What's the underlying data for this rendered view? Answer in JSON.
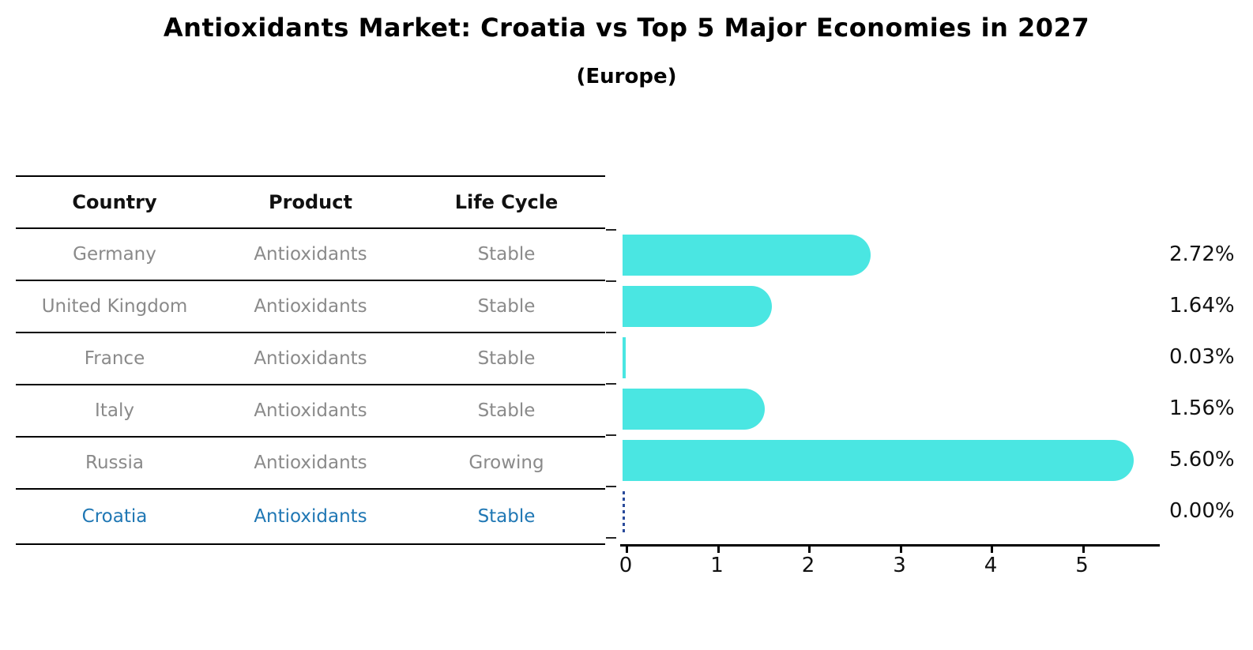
{
  "chart_data": {
    "type": "bar",
    "orientation": "horizontal",
    "title": "Antioxidants Market: Croatia vs Top 5 Major Economies in 2027",
    "subtitle": "(Europe)",
    "categories": [
      "Germany",
      "United Kingdom",
      "France",
      "Italy",
      "Russia",
      "Croatia"
    ],
    "values": [
      2.72,
      1.64,
      0.03,
      1.56,
      5.6,
      0.0
    ],
    "value_labels": [
      "2.72%",
      "1.64%",
      "0.03%",
      "1.56%",
      "5.60%",
      "0.00%"
    ],
    "x_ticks": [
      "0",
      "1",
      "2",
      "3",
      "4",
      "5"
    ],
    "xlim": [
      0,
      5.9
    ],
    "grid": false,
    "legend": "none",
    "bar_color": "#4ae6e2",
    "highlight_category": "Croatia",
    "highlight_color": "#1f77b4",
    "highlight_marker": "dashed-zero-line"
  },
  "table": {
    "headers": [
      "Country",
      "Product",
      "Life Cycle"
    ],
    "rows": [
      {
        "country": "Germany",
        "product": "Antioxidants",
        "life_cycle": "Stable",
        "highlight": false
      },
      {
        "country": "United Kingdom",
        "product": "Antioxidants",
        "life_cycle": "Stable",
        "highlight": false
      },
      {
        "country": "France",
        "product": "Antioxidants",
        "life_cycle": "Stable",
        "highlight": false
      },
      {
        "country": "Italy",
        "product": "Antioxidants",
        "life_cycle": "Stable",
        "highlight": false
      },
      {
        "country": "Russia",
        "product": "Antioxidants",
        "life_cycle": "Growing",
        "highlight": false
      },
      {
        "country": "Croatia",
        "product": "Antioxidants",
        "life_cycle": "Stable",
        "highlight": true
      }
    ]
  }
}
